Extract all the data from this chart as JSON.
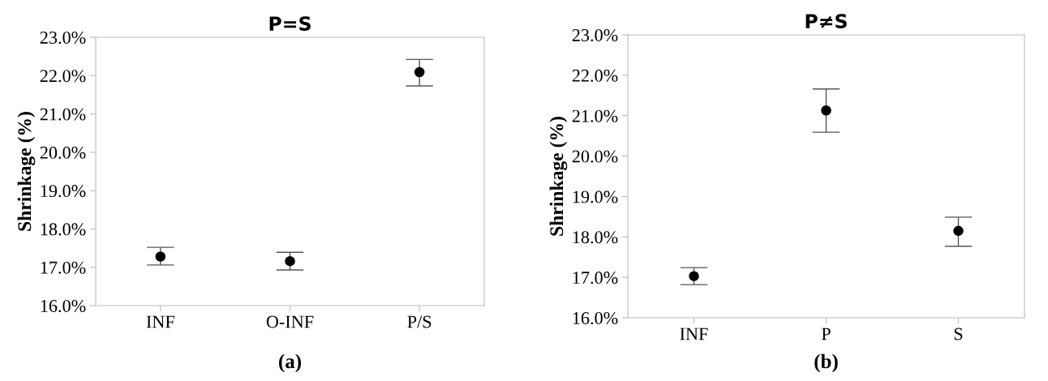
{
  "chart_data": [
    {
      "type": "scatter",
      "title": "P=S",
      "ylabel": "Shrinkage (%)",
      "categories": [
        "INF",
        "O-INF",
        "P/S"
      ],
      "values": [
        17.28,
        17.16,
        22.09
      ],
      "errors": [
        [
          17.06,
          17.52
        ],
        [
          16.93,
          17.39
        ],
        [
          21.73,
          22.42
        ]
      ],
      "color": "#000000",
      "marker": "circle",
      "ylim": [
        16,
        23
      ],
      "yticks": [
        {
          "value": 16,
          "label": "16.0%"
        },
        {
          "value": 17,
          "label": "17.0%"
        },
        {
          "value": 18,
          "label": "18.0%"
        },
        {
          "value": 19,
          "label": "19.0%"
        },
        {
          "value": 20,
          "label": "20.0%"
        },
        {
          "value": 21,
          "label": "21.0%"
        },
        {
          "value": 22,
          "label": "22.0%"
        },
        {
          "value": 23,
          "label": "23.0%"
        }
      ],
      "grid": false,
      "legend": false,
      "annotations": [
        "(a)"
      ]
    },
    {
      "type": "scatter",
      "title": "P≠S",
      "ylabel": "Shrinkage (%)",
      "categories": [
        "INF",
        "P",
        "S"
      ],
      "values": [
        17.03,
        21.13,
        18.15
      ],
      "errors": [
        [
          16.82,
          17.24
        ],
        [
          20.59,
          21.66
        ],
        [
          17.77,
          18.49
        ]
      ],
      "color": "#000000",
      "marker": "circle",
      "ylim": [
        16,
        23
      ],
      "yticks": [
        {
          "value": 16,
          "label": "16.0%"
        },
        {
          "value": 17,
          "label": "17.0%"
        },
        {
          "value": 18,
          "label": "18.0%"
        },
        {
          "value": 19,
          "label": "19.0%"
        },
        {
          "value": 20,
          "label": "20.0%"
        },
        {
          "value": 21,
          "label": "21.0%"
        },
        {
          "value": 22,
          "label": "22.0%"
        },
        {
          "value": 23,
          "label": "23.0%"
        }
      ],
      "grid": false,
      "legend": false,
      "annotations": [
        "(b)"
      ]
    }
  ]
}
